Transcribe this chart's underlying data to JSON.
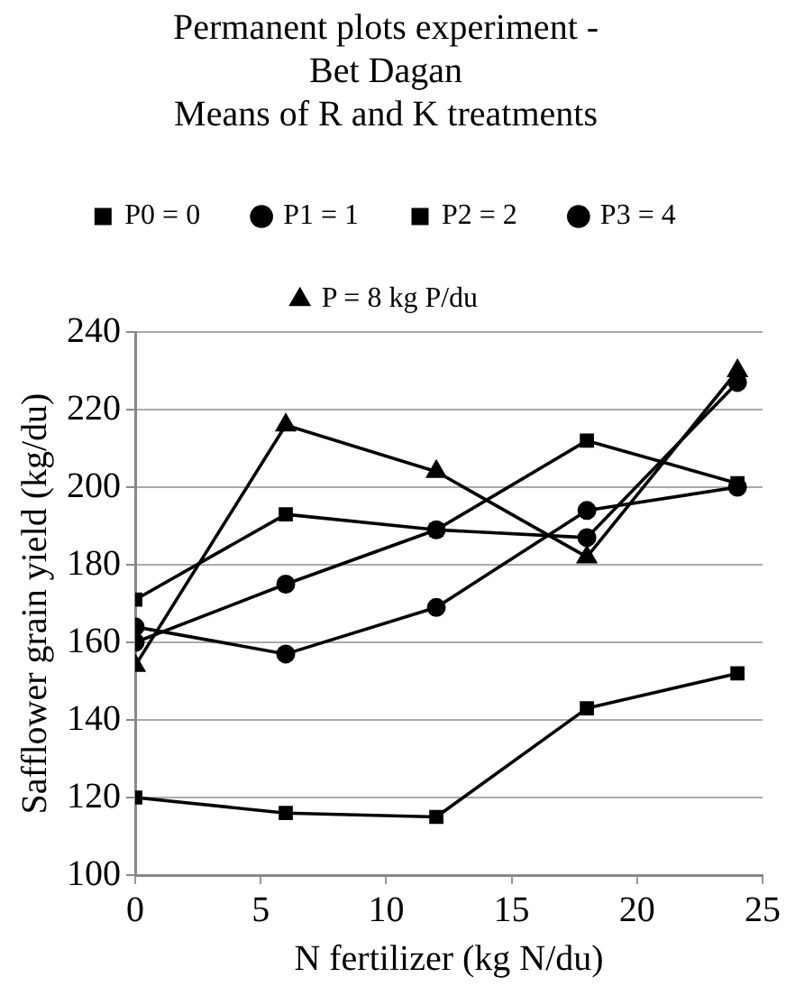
{
  "chart_data": {
    "type": "line",
    "title": [
      "Permanent plots experiment -",
      "Bet Dagan",
      "Means of R and K treatments"
    ],
    "xlabel": "N fertilizer (kg N/du)",
    "ylabel": "Safflower grain yield (kg/du)",
    "x": [
      0,
      6,
      12,
      18,
      24
    ],
    "series": [
      {
        "name": "P0 = 0",
        "color": "#000000",
        "marker": "square",
        "values": [
          120,
          116,
          115,
          143,
          152
        ]
      },
      {
        "name": "P1 = 1",
        "color": "#000000",
        "marker": "circle",
        "values": [
          160,
          175,
          189,
          187,
          227
        ]
      },
      {
        "name": "P2 = 2",
        "color": "#000000",
        "marker": "square",
        "values": [
          171,
          193,
          189,
          212,
          201
        ]
      },
      {
        "name": "P3 = 4",
        "color": "#000000",
        "marker": "circle",
        "values": [
          164,
          157,
          169,
          194,
          200
        ]
      },
      {
        "name": "P = 8 kg P/du",
        "color": "#000000",
        "marker": "triangle",
        "values": [
          154,
          216,
          204,
          182,
          230
        ]
      }
    ],
    "xlim": [
      0,
      25
    ],
    "xticks": [
      0,
      5,
      10,
      15,
      20,
      25
    ],
    "ylim": [
      100,
      240
    ],
    "yticks": [
      100,
      120,
      140,
      160,
      180,
      200,
      220,
      240
    ],
    "grid": "y",
    "legend": "top",
    "line_style": "solid"
  }
}
